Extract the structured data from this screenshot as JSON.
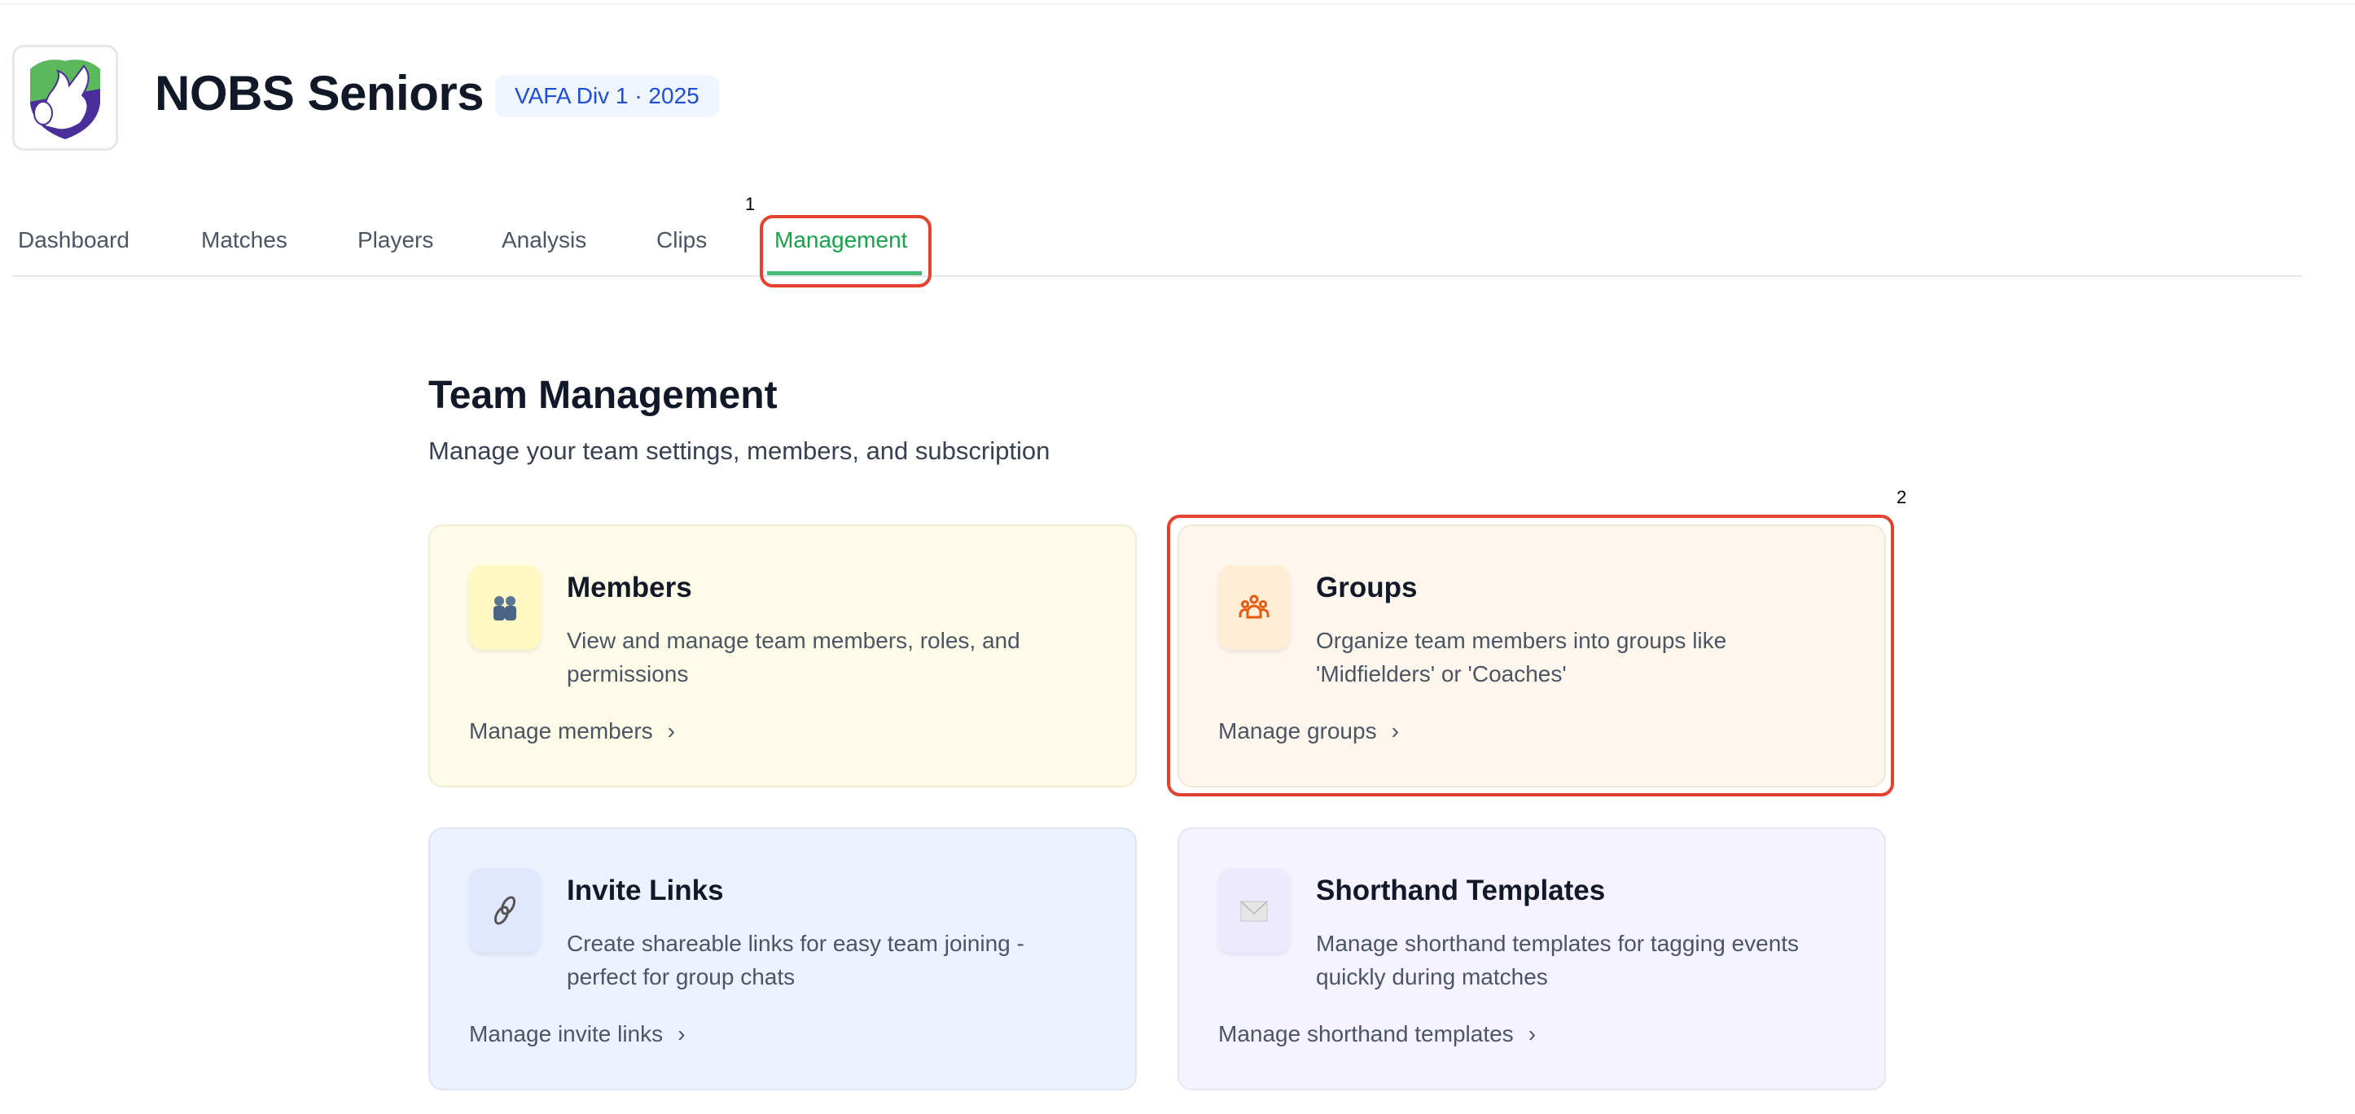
{
  "header": {
    "title": "NOBS Seniors",
    "badge": "VAFA Div 1 · 2025",
    "logo_icon": "griffin-shield-logo"
  },
  "tabs": [
    {
      "label": "Dashboard",
      "active": false
    },
    {
      "label": "Matches",
      "active": false
    },
    {
      "label": "Players",
      "active": false
    },
    {
      "label": "Analysis",
      "active": false
    },
    {
      "label": "Clips",
      "active": false
    },
    {
      "label": "Management",
      "active": true
    }
  ],
  "annotations": {
    "marker1": "1",
    "marker2": "2"
  },
  "page": {
    "title": "Team Management",
    "subtitle": "Manage your team settings, members, and subscription"
  },
  "cards": [
    {
      "icon": "people-icon",
      "title": "Members",
      "description": "View and manage team members, roles, and permissions",
      "link": "Manage members"
    },
    {
      "icon": "groups-icon",
      "title": "Groups",
      "description": "Organize team members into groups like 'Midfielders' or 'Coaches'",
      "link": "Manage groups"
    },
    {
      "icon": "link-icon",
      "title": "Invite Links",
      "description": "Create shareable links for easy team joining - perfect for group chats",
      "link": "Manage invite links"
    },
    {
      "icon": "envelope-icon",
      "title": "Shorthand Templates",
      "description": "Manage shorthand templates for tagging events quickly during matches",
      "link": "Manage shorthand templates"
    }
  ],
  "colors": {
    "accent": "#16a34a",
    "badge_text": "#1d4ed8",
    "highlight": "#e5412d"
  }
}
